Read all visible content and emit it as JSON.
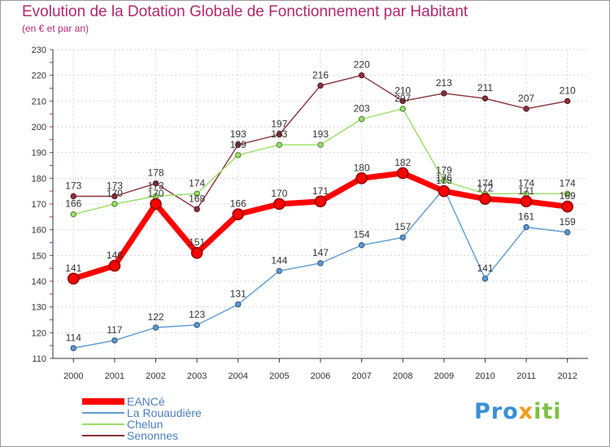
{
  "title": "Evolution de la Dotation Globale de Fonctionnement par Habitant",
  "subtitle": "(en € et par an)",
  "logo": {
    "part1": "Pro",
    "part2": "x",
    "part3": "iti"
  },
  "chart_data": {
    "type": "line",
    "title": "Evolution de la Dotation Globale de Fonctionnement par Habitant",
    "subtitle": "(en € et par an)",
    "x": [
      "2000",
      "2001",
      "2002",
      "2003",
      "2004",
      "2005",
      "2006",
      "2007",
      "2008",
      "2009",
      "2010",
      "2011",
      "2012"
    ],
    "ylim": [
      110,
      230
    ],
    "yticks": [
      110,
      120,
      130,
      140,
      150,
      160,
      170,
      180,
      190,
      200,
      210,
      220,
      230
    ],
    "grid": true,
    "legend_position": "bottom-left",
    "series": [
      {
        "name": "EANCé",
        "color": "#ff0000",
        "values": [
          141,
          146,
          170,
          151,
          166,
          170,
          171,
          180,
          182,
          175,
          172,
          171,
          169
        ]
      },
      {
        "name": "La Rouaudière",
        "color": "#5b9bd5",
        "values": [
          114,
          117,
          122,
          123,
          131,
          144,
          147,
          154,
          157,
          176,
          141,
          161,
          159
        ]
      },
      {
        "name": "Chelun",
        "color": "#99e066",
        "values": [
          166,
          170,
          173,
          174,
          189,
          193,
          193,
          203,
          207,
          179,
          174,
          174,
          174
        ]
      },
      {
        "name": "Senonnes",
        "color": "#8c2f3a",
        "values": [
          173,
          173,
          178,
          168,
          193,
          197,
          216,
          220,
          210,
          213,
          211,
          207,
          210
        ]
      }
    ]
  }
}
